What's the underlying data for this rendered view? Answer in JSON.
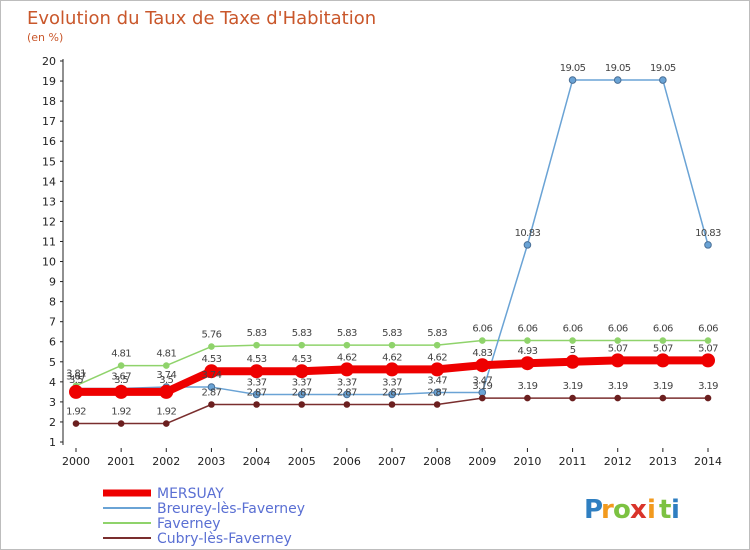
{
  "title": "Evolution du Taux de Taxe d'Habitation",
  "subtitle": "(en %)",
  "brand": {
    "letters": [
      "P",
      "r",
      "o",
      "x",
      "i",
      "t",
      "i"
    ],
    "colors": [
      "#2f7fc1",
      "#f29a1e",
      "#7cc242",
      "#d9342b",
      "#f29a1e",
      "#7cc242",
      "#2f7fc1"
    ]
  },
  "chart_data": {
    "type": "line",
    "title": "Evolution du Taux de Taxe d'Habitation",
    "subtitle": "(en %)",
    "xlabel": "",
    "ylabel": "",
    "x": [
      "2000",
      "2001",
      "2002",
      "2003",
      "2004",
      "2005",
      "2006",
      "2007",
      "2008",
      "2009",
      "2010",
      "2011",
      "2012",
      "2013",
      "2014"
    ],
    "ylim": [
      1,
      20
    ],
    "yticks": [
      "1",
      "2",
      "3",
      "4",
      "5",
      "6",
      "7",
      "8",
      "9",
      "10",
      "11",
      "12",
      "13",
      "14",
      "15",
      "16",
      "17",
      "18",
      "19",
      "20"
    ],
    "grid": "none",
    "legend_position": "bottom-left",
    "series": [
      {
        "name": "Faverney",
        "color": "#8fd36b",
        "style": "thin",
        "values": [
          3.81,
          4.81,
          4.81,
          5.76,
          5.83,
          5.83,
          5.83,
          5.83,
          5.83,
          6.06,
          6.06,
          6.06,
          6.06,
          6.06,
          6.06
        ],
        "labels": [
          "3.81",
          "4.81",
          "4.81",
          "5.76",
          "5.83",
          "5.83",
          "5.83",
          "5.83",
          "5.83",
          "6.06",
          "6.06",
          "6.06",
          "6.06",
          "6.06",
          "6.06"
        ]
      },
      {
        "name": "Breurey-lès-Faverney",
        "color": "#6aa3d5",
        "style": "thin",
        "values": [
          3.67,
          3.67,
          3.74,
          3.74,
          3.37,
          3.37,
          3.37,
          3.37,
          3.47,
          3.47,
          10.83,
          19.05,
          19.05,
          19.05,
          10.83
        ],
        "labels": [
          "3.67",
          "3.67",
          "3.74",
          "3.74",
          "3.37",
          "3.37",
          "3.37",
          "3.37",
          "3.47",
          "3.47",
          "10.83",
          "19.05",
          "19.05",
          "19.05",
          "10.83"
        ]
      },
      {
        "name": "Cubry-lès-Faverney",
        "color": "#7a2e2e",
        "style": "thin",
        "values": [
          1.92,
          1.92,
          1.92,
          2.87,
          2.87,
          2.87,
          2.87,
          2.87,
          2.87,
          3.19,
          3.19,
          3.19,
          3.19,
          3.19,
          3.19
        ],
        "labels": [
          "1.92",
          "1.92",
          "1.92",
          "2.87",
          "2.87",
          "2.87",
          "2.87",
          "2.87",
          "2.87",
          "3.19",
          "3.19",
          "3.19",
          "3.19",
          "3.19",
          "3.19"
        ]
      },
      {
        "name": "MERSUAY",
        "color": "#ee0000",
        "style": "thick",
        "values": [
          3.5,
          3.5,
          3.5,
          4.53,
          4.53,
          4.53,
          4.62,
          4.62,
          4.62,
          4.83,
          4.93,
          5,
          5.07,
          5.07,
          5.07
        ],
        "labels": [
          "3.5",
          "3.5",
          "3.5",
          "4.53",
          "4.53",
          "4.53",
          "4.62",
          "4.62",
          "4.62",
          "4.83",
          "4.93",
          "5",
          "5.07",
          "5.07",
          "5.07"
        ]
      }
    ],
    "legend": [
      "MERSUAY",
      "Breurey-lès-Faverney",
      "Faverney",
      "Cubry-lès-Faverney"
    ]
  }
}
